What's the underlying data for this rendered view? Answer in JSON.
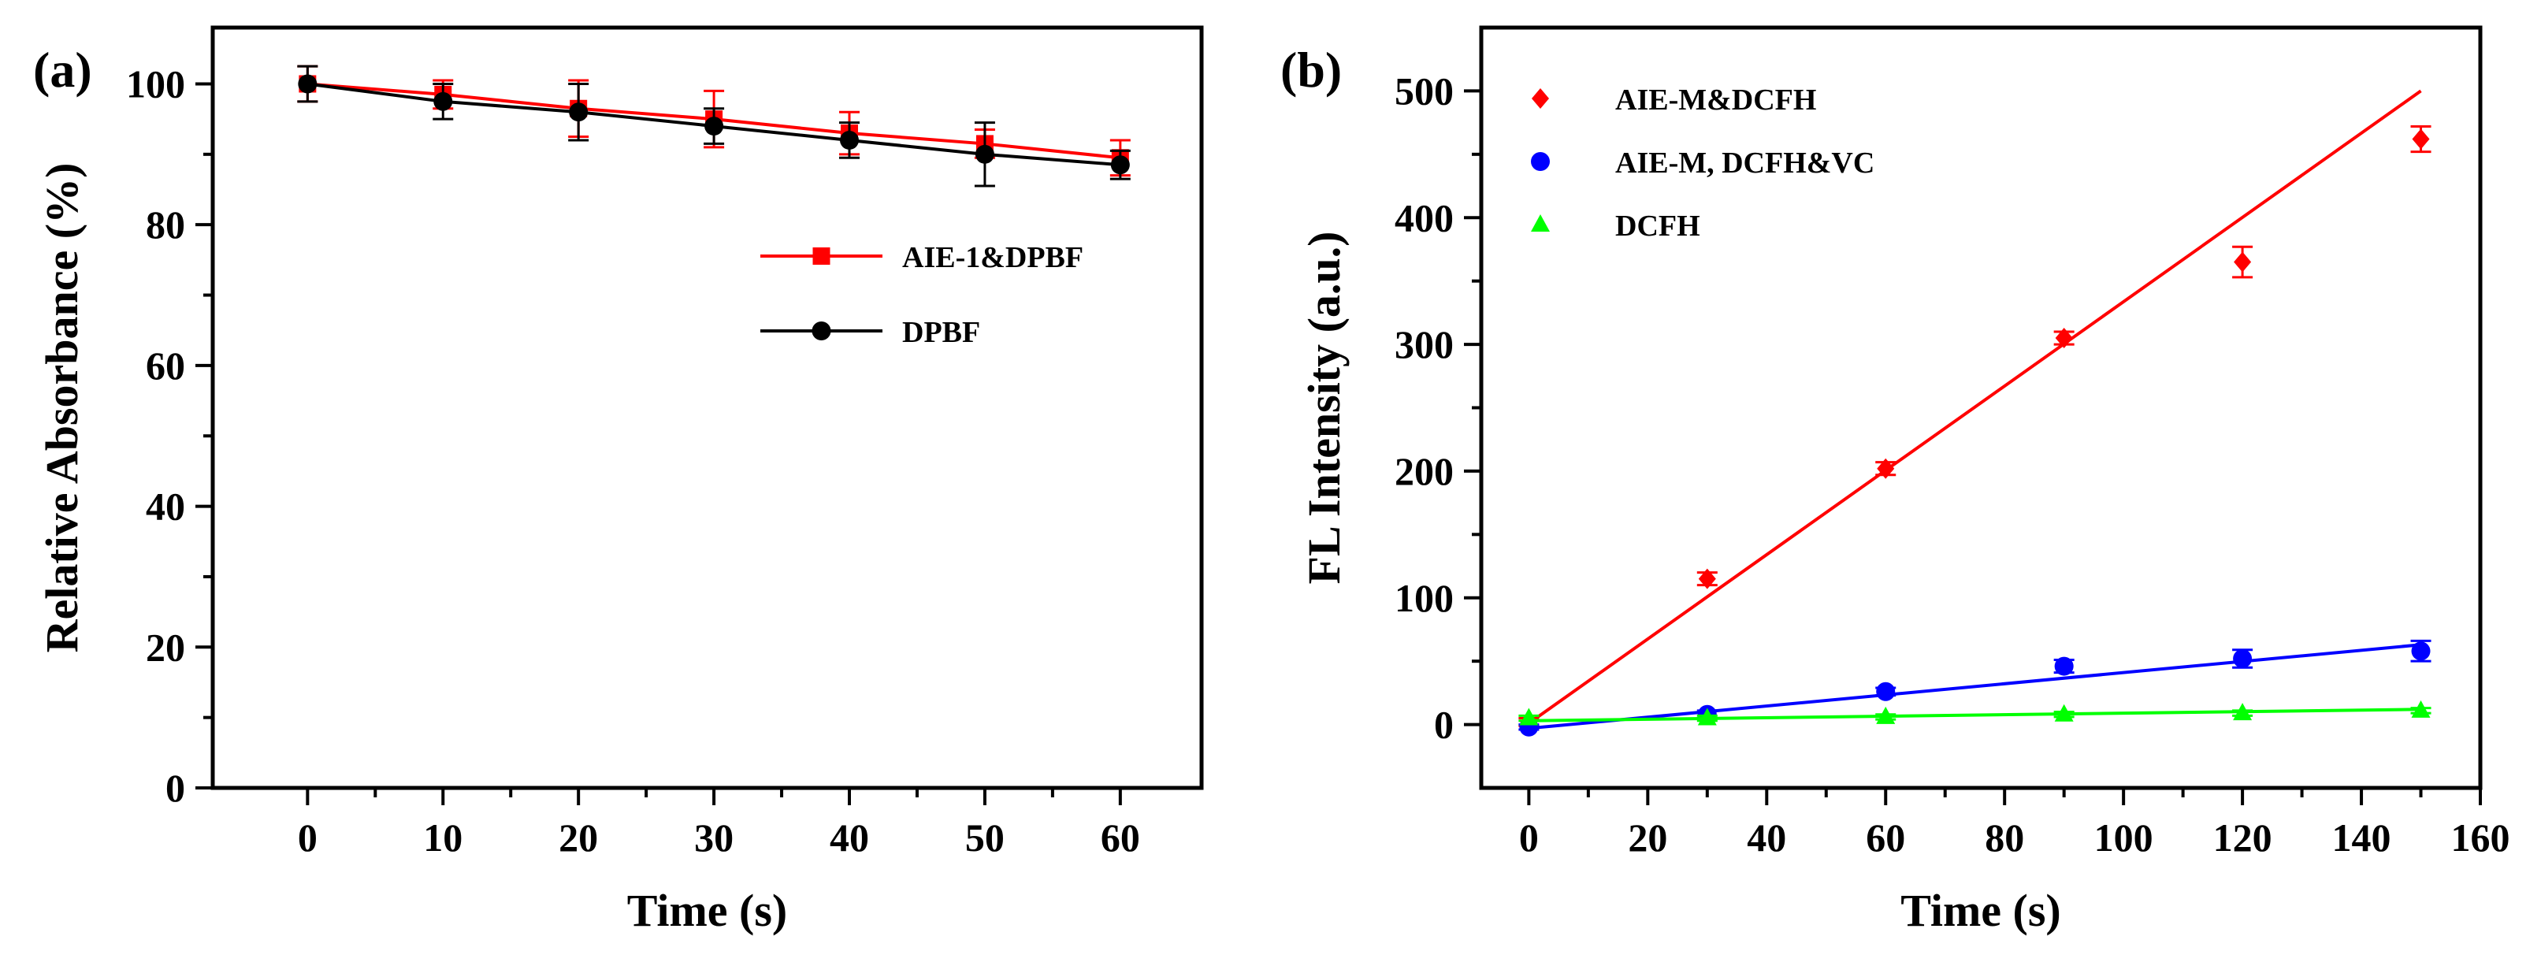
{
  "figure": {
    "panel_a_label": "(a)",
    "panel_b_label": "(b)"
  },
  "chart_data": [
    {
      "panel": "(a)",
      "type": "line",
      "title": "",
      "xlabel": "Time (s)",
      "ylabel": "Relative Absorbance (%)",
      "xlim": [
        -7,
        66
      ],
      "ylim": [
        0,
        108
      ],
      "xticks": [
        0,
        10,
        20,
        30,
        40,
        50,
        60
      ],
      "yticks": [
        0,
        20,
        40,
        60,
        80,
        100
      ],
      "legend_position": "center-right",
      "series": [
        {
          "name": "AIE-1&DPBF",
          "color": "#ff0000",
          "marker": "square",
          "x": [
            0,
            10,
            20,
            30,
            40,
            50,
            60
          ],
          "y": [
            100,
            98.5,
            96.5,
            95,
            93,
            91.5,
            89.5
          ],
          "err": [
            2.5,
            2.0,
            4.0,
            4.0,
            3.0,
            2.0,
            2.5
          ]
        },
        {
          "name": "DPBF",
          "color": "#000000",
          "marker": "circle",
          "x": [
            0,
            10,
            20,
            30,
            40,
            50,
            60
          ],
          "y": [
            100,
            97.5,
            96,
            94,
            92,
            90,
            88.5
          ],
          "err": [
            2.5,
            2.5,
            4.0,
            2.5,
            2.5,
            4.5,
            2.0
          ]
        }
      ]
    },
    {
      "panel": "(b)",
      "type": "scatter",
      "title": "",
      "xlabel": "Time (s)",
      "ylabel": "FL Intensity (a.u.)",
      "xlim": [
        -8,
        160
      ],
      "ylim": [
        -50,
        550
      ],
      "xticks": [
        0,
        20,
        40,
        60,
        80,
        100,
        120,
        140,
        160
      ],
      "yticks": [
        0,
        100,
        200,
        300,
        400,
        500
      ],
      "legend_position": "top-left",
      "series": [
        {
          "name": "AIE-M&DCFH",
          "color": "#ff0000",
          "marker": "diamond",
          "x": [
            0,
            30,
            60,
            90,
            120,
            150
          ],
          "y": [
            2,
            115,
            202,
            305,
            365,
            462
          ],
          "err": [
            3,
            5,
            5,
            5,
            12,
            10
          ],
          "fit": [
            0,
            150,
            1,
            500
          ]
        },
        {
          "name": "AIE-M, DCFH&VC",
          "color": "#0000ff",
          "marker": "circle",
          "x": [
            0,
            30,
            60,
            90,
            120,
            150
          ],
          "y": [
            -2,
            8,
            26,
            46,
            52,
            58
          ],
          "err": [
            2,
            3,
            3,
            5,
            7,
            8
          ],
          "fit": [
            0,
            150,
            -3,
            63
          ]
        },
        {
          "name": "DCFH",
          "color": "#00ff00",
          "marker": "triangle",
          "x": [
            0,
            30,
            60,
            90,
            120,
            150
          ],
          "y": [
            5,
            5,
            6,
            8,
            9,
            11
          ],
          "err": [
            2,
            2,
            2,
            2,
            2,
            2
          ],
          "fit": [
            0,
            150,
            3,
            12
          ]
        }
      ]
    }
  ]
}
